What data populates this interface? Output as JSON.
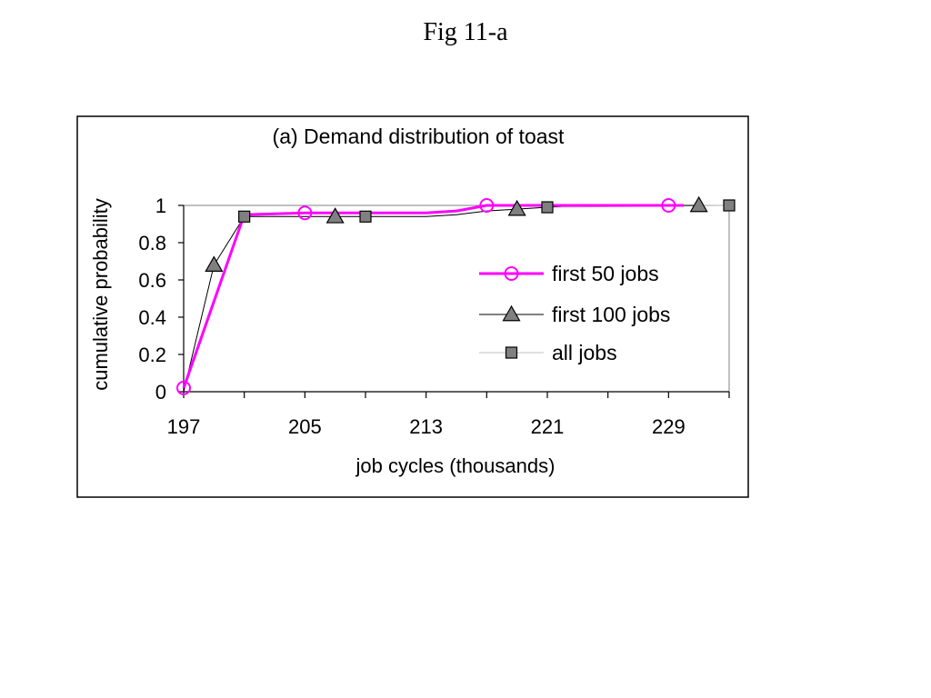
{
  "page": {
    "title": "Fig 11-a"
  },
  "colors": {
    "first50": "#ff00ff",
    "first100": "#000000",
    "alljobs": "#c0c0c0",
    "markerFill": "#808080",
    "frame": "#000000",
    "plotBorder": "#808080"
  },
  "chart_data": {
    "type": "line",
    "title": "(a) Demand distribution of toast",
    "xlabel": "job cycles (thousands)",
    "ylabel": "cumulative probability",
    "xlim": [
      197,
      233
    ],
    "ylim": [
      0,
      1
    ],
    "xticks": [
      197,
      205,
      213,
      221,
      229
    ],
    "yticks": [
      0,
      0.2,
      0.4,
      0.6,
      0.8,
      1
    ],
    "ytick_labels": [
      "0",
      "0.2",
      "0.4",
      "0.6",
      "0.8",
      "1"
    ],
    "minor_xticks": [
      201,
      209,
      217,
      225,
      233
    ],
    "grid": false,
    "legend": {
      "position": "right",
      "entries": [
        "first 50 jobs",
        "first 100 jobs",
        "all jobs"
      ]
    },
    "series": [
      {
        "name": "first 50 jobs",
        "color": "#ff00ff",
        "marker": "circle-open",
        "line_width": 3,
        "points": [
          [
            197,
            0.02
          ],
          [
            201,
            0.95
          ],
          [
            205,
            0.96
          ],
          [
            209,
            0.96
          ],
          [
            213,
            0.96
          ],
          [
            215,
            0.97
          ],
          [
            217,
            1.0
          ],
          [
            219,
            1.0
          ],
          [
            221,
            1.0
          ],
          [
            229,
            1.0
          ],
          [
            230,
            1.0
          ]
        ],
        "marker_x": [
          197,
          205,
          217,
          229
        ]
      },
      {
        "name": "first 100 jobs",
        "color": "#000000",
        "marker": "triangle",
        "line_width": 1,
        "points": [
          [
            197,
            0.0
          ],
          [
            199,
            0.68
          ],
          [
            201,
            0.94
          ],
          [
            207,
            0.94
          ],
          [
            213,
            0.94
          ],
          [
            215,
            0.95
          ],
          [
            217,
            0.97
          ],
          [
            219,
            0.98
          ],
          [
            221,
            0.99
          ],
          [
            223,
            1.0
          ],
          [
            231,
            1.0
          ]
        ],
        "marker_x": [
          199,
          207,
          219,
          231
        ]
      },
      {
        "name": "all jobs",
        "color": "#c0c0c0",
        "marker": "square",
        "line_width": 1,
        "points": [
          [
            197,
            0.0
          ],
          [
            201,
            0.94
          ],
          [
            209,
            0.94
          ],
          [
            213,
            0.94
          ],
          [
            215,
            0.95
          ],
          [
            217,
            0.97
          ],
          [
            221,
            0.99
          ],
          [
            233,
            1.0
          ]
        ],
        "marker_x": [
          201,
          209,
          221,
          233
        ]
      }
    ]
  }
}
